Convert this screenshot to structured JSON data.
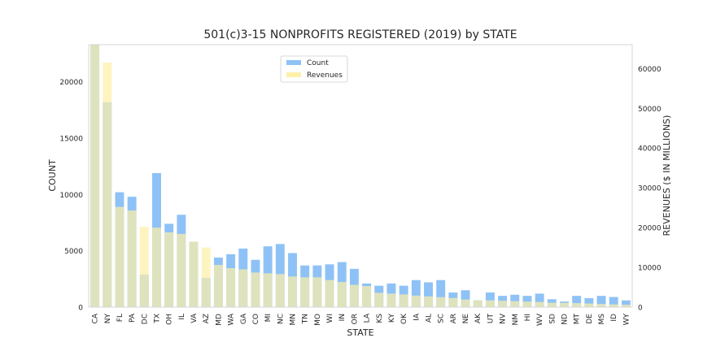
{
  "chart_data": {
    "type": "bar",
    "title": "501(c)3-15 NONPROFITS REGISTERED (2019) by STATE",
    "xlabel": "STATE",
    "ylabel_left": "COUNT",
    "ylabel_right": "REVENUES ($ IN MILLIONS)",
    "ylim_left": [
      0,
      23300
    ],
    "ylim_right": [
      0,
      66000
    ],
    "yticks_left": [
      0,
      5000,
      10000,
      15000,
      20000
    ],
    "yticks_right": [
      0,
      10000,
      20000,
      30000,
      40000,
      50000,
      60000
    ],
    "grid": false,
    "legend_position": "upper-center",
    "categories": [
      "CA",
      "NY",
      "FL",
      "PA",
      "DC",
      "TX",
      "OH",
      "IL",
      "VA",
      "AZ",
      "MD",
      "WA",
      "GA",
      "CO",
      "MI",
      "NC",
      "MN",
      "TN",
      "MO",
      "WI",
      "IN",
      "OR",
      "LA",
      "KS",
      "KY",
      "OK",
      "IA",
      "AL",
      "SC",
      "AR",
      "NE",
      "AK",
      "UT",
      "NV",
      "NM",
      "HI",
      "WV",
      "SD",
      "ND",
      "MT",
      "DE",
      "MS",
      "ID",
      "WY"
    ],
    "series": [
      {
        "name": "Count",
        "axis": "left",
        "color": "#8ec2f6",
        "values": [
          23300,
          18200,
          10200,
          9800,
          2900,
          11900,
          7400,
          8200,
          5800,
          2600,
          4400,
          4700,
          5200,
          4200,
          5400,
          5600,
          4800,
          3700,
          3700,
          3800,
          4000,
          3400,
          2100,
          1900,
          2100,
          1900,
          2400,
          2200,
          2400,
          1300,
          1500,
          600,
          1300,
          1000,
          1100,
          1000,
          1200,
          700,
          500,
          1000,
          800,
          1000,
          900,
          600
        ]
      },
      {
        "name": "Revenues",
        "axis": "right",
        "color": "#fdf0a8",
        "values": [
          66000,
          61500,
          25200,
          24300,
          20200,
          20000,
          18800,
          18400,
          16500,
          15000,
          10600,
          9800,
          9500,
          8700,
          8500,
          8300,
          7700,
          7500,
          7500,
          6800,
          6300,
          5600,
          5300,
          3600,
          3400,
          3200,
          2900,
          2700,
          2500,
          2300,
          1900,
          1700,
          1700,
          1600,
          1500,
          1400,
          1300,
          1100,
          1100,
          1000,
          900,
          800,
          700,
          600
        ]
      }
    ]
  }
}
